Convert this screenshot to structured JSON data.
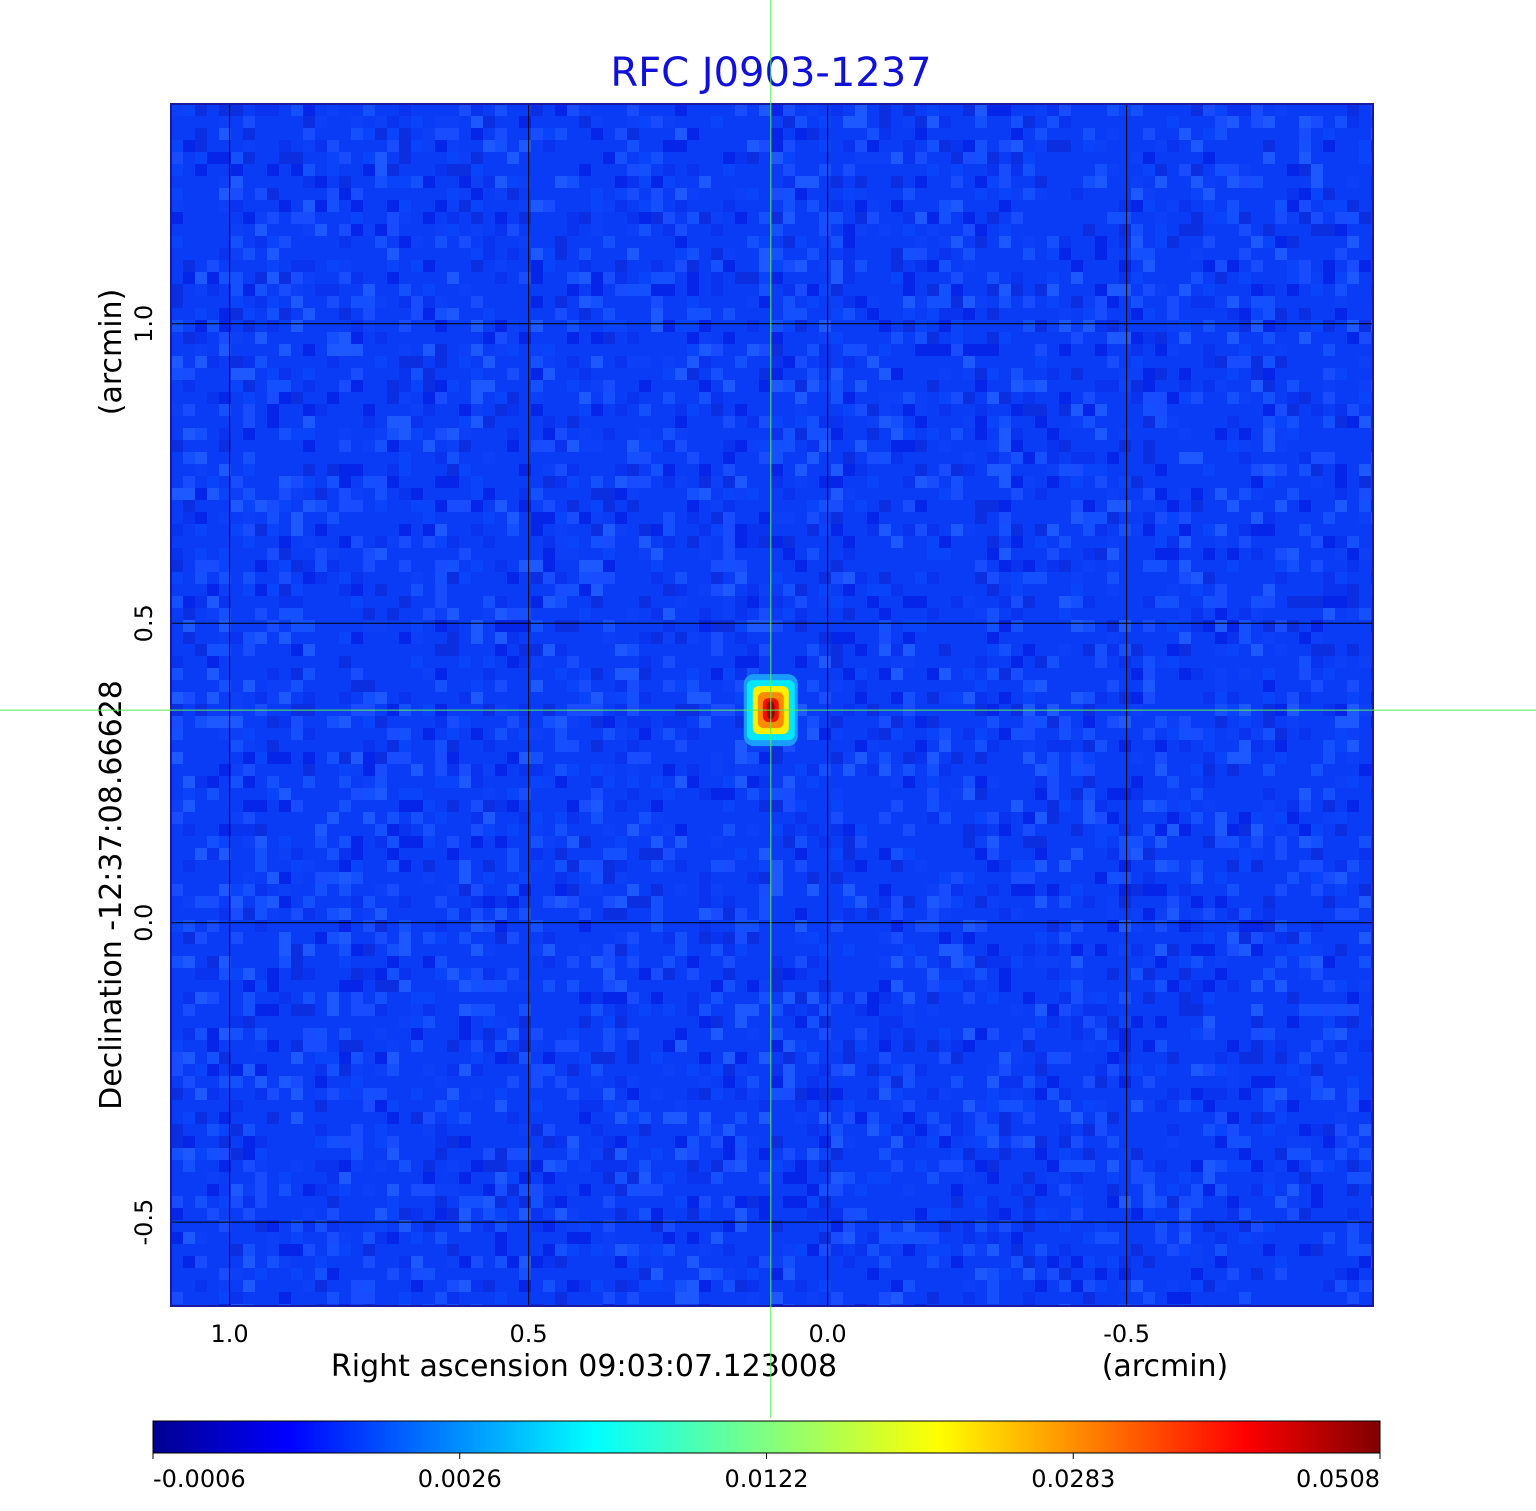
{
  "chart_data": {
    "type": "heatmap",
    "title": "RFC J0903-1237",
    "title_color": "#1010d8",
    "xlabel": "Right ascension  09:03:07.123008",
    "xunit": "(arcmin)",
    "ylabel": "Declination  -12:37:08.66628",
    "yunit": "(arcmin)",
    "x_ticks": [
      "1.0",
      "0.5",
      "0.0",
      "-0.5"
    ],
    "y_ticks": [
      "1.0",
      "0.5",
      "0.0",
      "-0.5"
    ],
    "x_tick_values": [
      1.0,
      0.5,
      0.0,
      -0.5
    ],
    "y_tick_values": [
      1.0,
      0.5,
      0.0,
      -0.5
    ],
    "xlim": [
      1.098,
      -0.912
    ],
    "ylim": [
      -0.64,
      1.367
    ],
    "grid": true,
    "colormap": "jet",
    "colorbar_ticks": [
      "-0.0006",
      "0.0026",
      "0.0122",
      "0.0283",
      "0.0508"
    ],
    "background_level": 0.0,
    "source": {
      "x": 0.095,
      "y": 0.355,
      "peak": 0.0508
    },
    "crosshair": {
      "x": 0.095,
      "y": 0.355,
      "color": "#55ee55"
    }
  }
}
